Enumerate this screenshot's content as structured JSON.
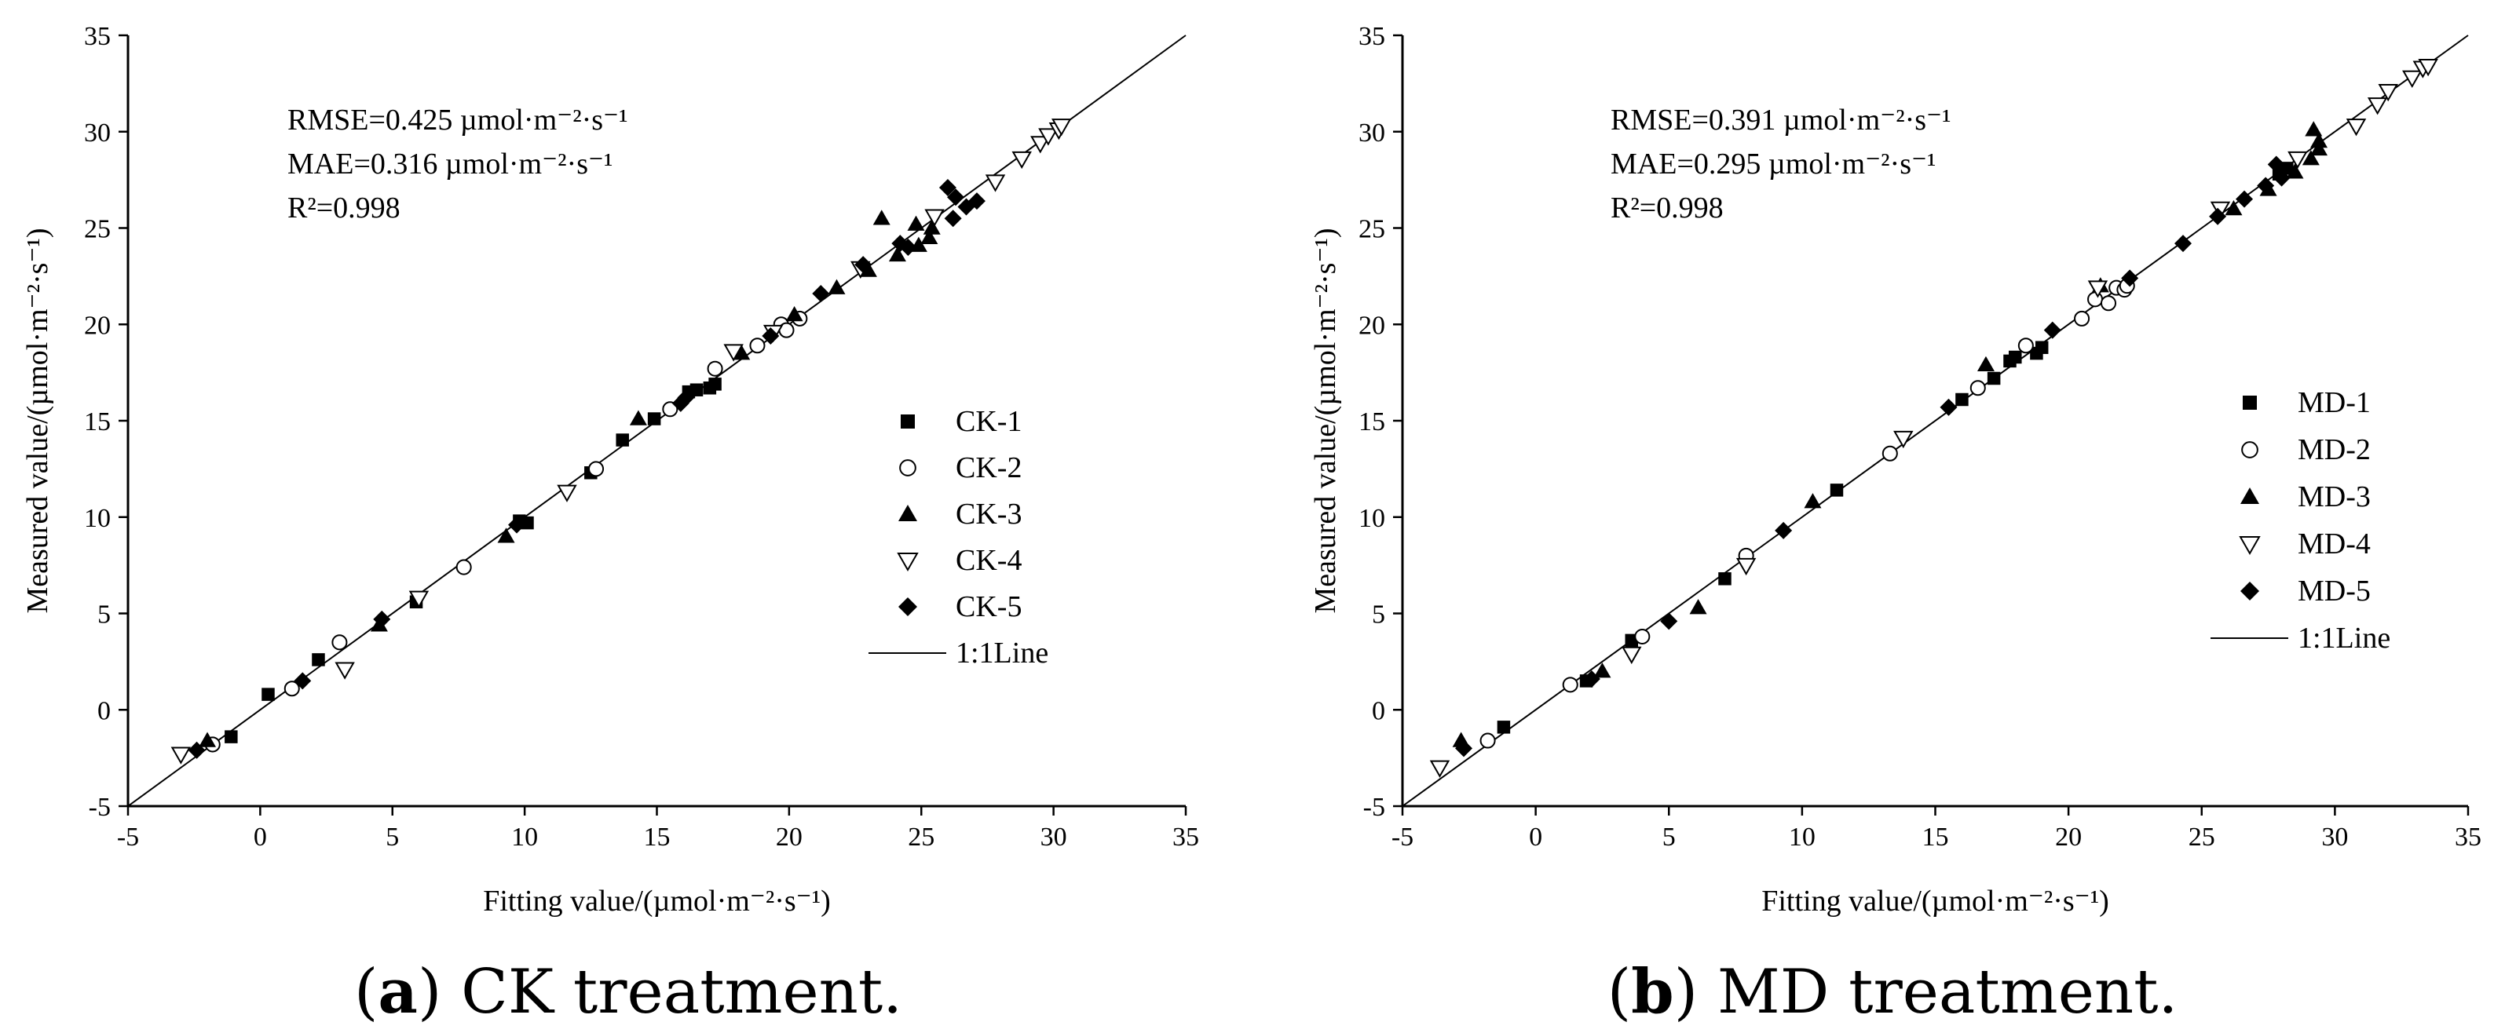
{
  "chart_data": [
    {
      "type": "scatter",
      "caption_letter": "a",
      "caption_text": " CK treatment.",
      "xlabel": "Fitting value/(µmol·m⁻²·s⁻¹)",
      "ylabel": "Measured value/(µmol·m⁻²·s⁻¹)",
      "xlim": [
        -5,
        35
      ],
      "ylim": [
        -5,
        35
      ],
      "ticks": [
        -5,
        0,
        5,
        10,
        15,
        20,
        25,
        30,
        35
      ],
      "stats": [
        "RMSE=0.425 µmol·m⁻²·s⁻¹",
        "MAE=0.316 µmol·m⁻²·s⁻¹",
        "R²=0.998"
      ],
      "line_label": "1:1Line",
      "legend_position": "right",
      "series": [
        {
          "name": "CK-1",
          "marker": "square",
          "points": [
            [
              -1.1,
              -1.4
            ],
            [
              0.3,
              0.8
            ],
            [
              2.2,
              2.6
            ],
            [
              5.9,
              5.6
            ],
            [
              9.8,
              9.8
            ],
            [
              10.1,
              9.7
            ],
            [
              12.5,
              12.3
            ],
            [
              13.7,
              14.0
            ],
            [
              14.9,
              15.1
            ],
            [
              16.2,
              16.5
            ],
            [
              16.5,
              16.6
            ],
            [
              17.0,
              16.7
            ],
            [
              17.2,
              16.9
            ]
          ]
        },
        {
          "name": "CK-2",
          "marker": "circle",
          "points": [
            [
              -1.8,
              -1.8
            ],
            [
              1.2,
              1.1
            ],
            [
              3.0,
              3.5
            ],
            [
              7.7,
              7.4
            ],
            [
              12.7,
              12.5
            ],
            [
              15.5,
              15.6
            ],
            [
              17.2,
              17.7
            ],
            [
              18.8,
              18.9
            ],
            [
              19.7,
              20.0
            ],
            [
              19.9,
              19.7
            ],
            [
              20.4,
              20.3
            ]
          ]
        },
        {
          "name": "CK-3",
          "marker": "triangle-up",
          "points": [
            [
              -2.0,
              -1.6
            ],
            [
              4.5,
              4.4
            ],
            [
              9.3,
              9.0
            ],
            [
              14.3,
              15.1
            ],
            [
              18.2,
              18.5
            ],
            [
              20.2,
              20.5
            ],
            [
              21.8,
              21.9
            ],
            [
              23.0,
              22.8
            ],
            [
              23.5,
              25.5
            ],
            [
              24.1,
              23.6
            ],
            [
              24.8,
              25.2
            ],
            [
              24.9,
              24.1
            ],
            [
              25.3,
              24.5
            ],
            [
              25.4,
              25.0
            ]
          ]
        },
        {
          "name": "CK-4",
          "marker": "triangle-down",
          "points": [
            [
              -3.0,
              -2.3
            ],
            [
              3.2,
              2.1
            ],
            [
              6.0,
              5.8
            ],
            [
              11.6,
              11.3
            ],
            [
              17.9,
              18.6
            ],
            [
              19.4,
              19.6
            ],
            [
              22.7,
              22.9
            ],
            [
              25.5,
              25.6
            ],
            [
              27.8,
              27.4
            ],
            [
              28.8,
              28.6
            ],
            [
              29.5,
              29.4
            ],
            [
              29.8,
              29.8
            ],
            [
              30.2,
              30.1
            ],
            [
              30.3,
              30.3
            ]
          ]
        },
        {
          "name": "CK-5",
          "marker": "diamond",
          "points": [
            [
              -2.4,
              -2.1
            ],
            [
              1.6,
              1.5
            ],
            [
              4.6,
              4.7
            ],
            [
              9.7,
              9.6
            ],
            [
              15.9,
              15.9
            ],
            [
              16.1,
              16.2
            ],
            [
              19.3,
              19.4
            ],
            [
              21.2,
              21.6
            ],
            [
              22.8,
              23.1
            ],
            [
              24.2,
              24.2
            ],
            [
              24.5,
              24.0
            ],
            [
              26.0,
              27.1
            ],
            [
              26.3,
              26.6
            ],
            [
              26.2,
              25.5
            ],
            [
              26.7,
              26.1
            ],
            [
              27.1,
              26.4
            ]
          ]
        }
      ]
    },
    {
      "type": "scatter",
      "caption_letter": "b",
      "caption_text": " MD treatment.",
      "xlabel": "Fitting value/(µmol·m⁻²·s⁻¹)",
      "ylabel": "Measured value/(µmol·m⁻²·s⁻¹)",
      "xlim": [
        -5,
        35
      ],
      "ylim": [
        -5,
        35
      ],
      "ticks": [
        -5,
        0,
        5,
        10,
        15,
        20,
        25,
        30,
        35
      ],
      "stats": [
        "RMSE=0.391 µmol·m⁻²·s⁻¹",
        "MAE=0.295 µmol·m⁻²·s⁻¹",
        "R²=0.998"
      ],
      "line_label": "1:1Line",
      "legend_position": "right",
      "series": [
        {
          "name": "MD-1",
          "marker": "square",
          "points": [
            [
              -1.2,
              -0.9
            ],
            [
              1.9,
              1.5
            ],
            [
              3.6,
              3.6
            ],
            [
              7.1,
              6.8
            ],
            [
              11.3,
              11.4
            ],
            [
              16.0,
              16.1
            ],
            [
              17.2,
              17.2
            ],
            [
              17.8,
              18.1
            ],
            [
              18.0,
              18.3
            ],
            [
              18.8,
              18.5
            ],
            [
              19.0,
              18.8
            ],
            [
              27.9,
              27.8
            ],
            [
              28.2,
              28.1
            ]
          ]
        },
        {
          "name": "MD-2",
          "marker": "circle",
          "points": [
            [
              -1.8,
              -1.6
            ],
            [
              1.3,
              1.3
            ],
            [
              4.0,
              3.8
            ],
            [
              7.9,
              8.0
            ],
            [
              13.3,
              13.3
            ],
            [
              16.6,
              16.7
            ],
            [
              18.4,
              18.9
            ],
            [
              20.5,
              20.3
            ],
            [
              21.0,
              21.3
            ],
            [
              21.5,
              21.1
            ],
            [
              21.8,
              21.9
            ],
            [
              22.1,
              21.8
            ],
            [
              22.2,
              22.0
            ]
          ]
        },
        {
          "name": "MD-3",
          "marker": "triangle-up",
          "points": [
            [
              -2.8,
              -1.6
            ],
            [
              2.5,
              2.0
            ],
            [
              6.1,
              5.3
            ],
            [
              10.4,
              10.8
            ],
            [
              16.9,
              17.9
            ],
            [
              21.2,
              22.0
            ],
            [
              26.2,
              26.0
            ],
            [
              27.5,
              27.0
            ],
            [
              28.5,
              27.9
            ],
            [
              29.1,
              28.6
            ],
            [
              29.2,
              30.1
            ],
            [
              29.4,
              29.5
            ],
            [
              29.4,
              29.1
            ]
          ]
        },
        {
          "name": "MD-4",
          "marker": "triangle-down",
          "points": [
            [
              -3.6,
              -3.0
            ],
            [
              3.6,
              2.9
            ],
            [
              7.9,
              7.5
            ],
            [
              13.8,
              14.1
            ],
            [
              21.1,
              21.9
            ],
            [
              25.7,
              26.0
            ],
            [
              28.6,
              28.6
            ],
            [
              30.8,
              30.3
            ],
            [
              31.6,
              31.4
            ],
            [
              32.0,
              32.1
            ],
            [
              32.9,
              32.8
            ],
            [
              33.3,
              33.3
            ],
            [
              33.5,
              33.4
            ]
          ]
        },
        {
          "name": "MD-5",
          "marker": "diamond",
          "points": [
            [
              -2.7,
              -2.0
            ],
            [
              2.1,
              1.6
            ],
            [
              5.0,
              4.6
            ],
            [
              9.3,
              9.3
            ],
            [
              15.5,
              15.7
            ],
            [
              19.4,
              19.7
            ],
            [
              22.3,
              22.4
            ],
            [
              24.3,
              24.2
            ],
            [
              25.6,
              25.6
            ],
            [
              26.6,
              26.5
            ],
            [
              27.4,
              27.2
            ],
            [
              27.8,
              28.3
            ],
            [
              28.0,
              27.6
            ]
          ]
        }
      ]
    }
  ]
}
